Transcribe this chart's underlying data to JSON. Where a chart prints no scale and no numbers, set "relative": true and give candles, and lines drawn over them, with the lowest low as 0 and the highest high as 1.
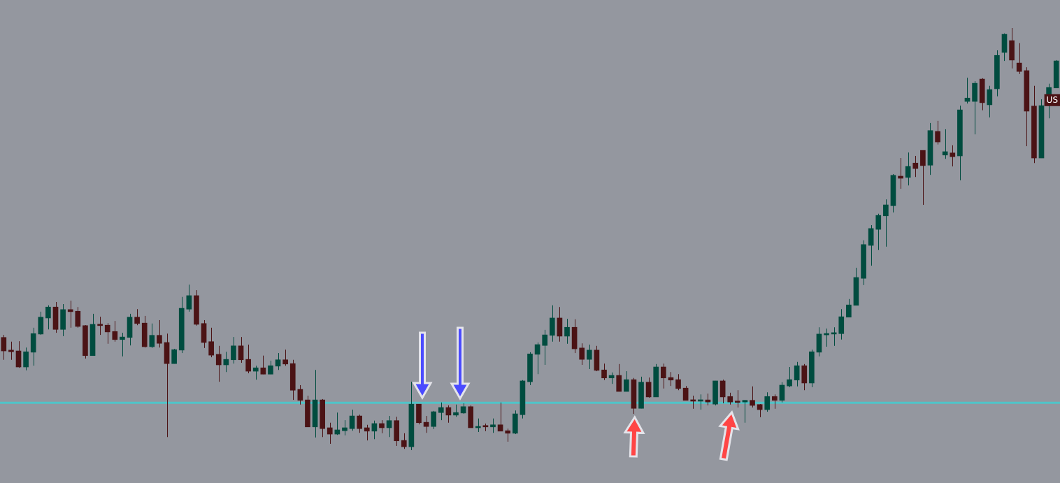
{
  "chart_data": {
    "type": "candlestick",
    "relative": true,
    "categories": [
      null,
      null,
      null,
      null,
      null,
      null,
      null,
      null,
      null,
      null,
      null,
      null,
      null,
      null,
      null,
      null,
      null,
      null,
      null,
      null,
      null,
      null,
      null,
      null,
      null,
      null,
      null,
      null,
      null,
      null,
      null,
      null,
      null,
      null,
      null,
      null,
      null,
      null,
      null,
      null,
      null,
      null,
      null,
      null,
      null,
      null,
      null,
      null,
      null,
      null,
      null,
      null,
      null,
      null,
      null,
      null,
      null,
      null,
      null,
      null,
      null,
      null,
      null,
      null,
      null,
      null,
      null,
      null,
      null,
      null,
      null,
      null,
      null,
      null,
      null,
      null,
      null,
      null,
      null,
      null,
      null,
      null,
      null,
      null,
      null,
      null,
      null,
      null,
      null,
      null,
      null,
      null,
      null,
      null,
      null,
      null,
      null,
      null,
      null,
      null,
      null,
      null,
      null,
      null,
      null,
      null,
      null,
      null,
      null,
      null,
      null,
      null,
      null,
      null,
      null,
      null,
      null,
      null,
      null,
      null,
      null,
      null,
      null,
      null,
      null,
      null,
      null,
      null,
      null,
      null,
      null,
      null,
      null,
      null,
      null,
      null,
      null,
      null,
      null,
      null,
      null,
      null,
      null
    ],
    "ohlc": [
      [
        0.267,
        0.273,
        0.214,
        0.235
      ],
      [
        0.237,
        0.257,
        0.214,
        0.233
      ],
      [
        0.235,
        0.258,
        0.195,
        0.197
      ],
      [
        0.197,
        0.243,
        0.189,
        0.233
      ],
      [
        0.232,
        0.29,
        0.2,
        0.276
      ],
      [
        0.275,
        0.328,
        0.273,
        0.315
      ],
      [
        0.313,
        0.343,
        0.286,
        0.339
      ],
      [
        0.339,
        0.351,
        0.278,
        0.286
      ],
      [
        0.286,
        0.346,
        0.27,
        0.333
      ],
      [
        0.333,
        0.354,
        0.29,
        0.328
      ],
      [
        0.329,
        0.339,
        0.29,
        0.293
      ],
      [
        0.295,
        0.296,
        0.217,
        0.224
      ],
      [
        0.224,
        0.323,
        0.224,
        0.298
      ],
      [
        0.298,
        0.316,
        0.273,
        0.295
      ],
      [
        0.296,
        0.301,
        0.252,
        0.28
      ],
      [
        0.281,
        0.306,
        0.257,
        0.262
      ],
      [
        0.262,
        0.278,
        0.222,
        0.268
      ],
      [
        0.267,
        0.323,
        0.248,
        0.315
      ],
      [
        0.315,
        0.334,
        0.296,
        0.3
      ],
      [
        0.301,
        0.318,
        0.243,
        0.245
      ],
      [
        0.245,
        0.3,
        0.242,
        0.272
      ],
      [
        0.272,
        0.308,
        0.243,
        0.253
      ],
      [
        0.255,
        0.276,
        0.031,
        0.205
      ],
      [
        0.205,
        0.24,
        0.205,
        0.238
      ],
      [
        0.237,
        0.363,
        0.23,
        0.336
      ],
      [
        0.334,
        0.392,
        0.328,
        0.366
      ],
      [
        0.366,
        0.379,
        0.295,
        0.298
      ],
      [
        0.3,
        0.308,
        0.242,
        0.255
      ],
      [
        0.257,
        0.29,
        0.22,
        0.225
      ],
      [
        0.227,
        0.247,
        0.162,
        0.202
      ],
      [
        0.202,
        0.233,
        0.185,
        0.215
      ],
      [
        0.214,
        0.268,
        0.205,
        0.247
      ],
      [
        0.247,
        0.268,
        0.207,
        0.214
      ],
      [
        0.215,
        0.25,
        0.182,
        0.187
      ],
      [
        0.187,
        0.2,
        0.167,
        0.195
      ],
      [
        0.195,
        0.224,
        0.18,
        0.18
      ],
      [
        0.18,
        0.212,
        0.18,
        0.2
      ],
      [
        0.199,
        0.23,
        0.19,
        0.214
      ],
      [
        0.214,
        0.238,
        0.2,
        0.204
      ],
      [
        0.205,
        0.214,
        0.119,
        0.142
      ],
      [
        0.144,
        0.154,
        0.108,
        0.118
      ],
      [
        0.119,
        0.129,
        0.055,
        0.055
      ],
      [
        0.055,
        0.19,
        0.03,
        0.119
      ],
      [
        0.119,
        0.121,
        0.031,
        0.051
      ],
      [
        0.053,
        0.065,
        0.015,
        0.038
      ],
      [
        0.038,
        0.089,
        0.036,
        0.048
      ],
      [
        0.046,
        0.071,
        0.035,
        0.053
      ],
      [
        0.051,
        0.096,
        0.046,
        0.081
      ],
      [
        0.081,
        0.084,
        0.041,
        0.051
      ],
      [
        0.053,
        0.06,
        0.023,
        0.045
      ],
      [
        0.045,
        0.07,
        0.026,
        0.063
      ],
      [
        0.063,
        0.071,
        0.04,
        0.053
      ],
      [
        0.053,
        0.081,
        0.031,
        0.07
      ],
      [
        0.07,
        0.079,
        0.01,
        0.022
      ],
      [
        0.023,
        0.04,
        0.003,
        0.008
      ],
      [
        0.008,
        0.162,
        0,
        0.109
      ],
      [
        0.109,
        0.109,
        0.061,
        0.065
      ],
      [
        0.066,
        0.081,
        0.041,
        0.056
      ],
      [
        0.056,
        0.093,
        0.05,
        0.091
      ],
      [
        0.089,
        0.113,
        0.071,
        0.101
      ],
      [
        0.101,
        0.106,
        0.065,
        0.083
      ],
      [
        0.083,
        0.108,
        0.079,
        0.089
      ],
      [
        0.088,
        0.111,
        0.086,
        0.103
      ],
      [
        0.103,
        0.106,
        0.053,
        0.053
      ],
      [
        0.053,
        0.075,
        0.043,
        0.056
      ],
      [
        0.056,
        0.063,
        0.045,
        0.055
      ],
      [
        0.055,
        0.075,
        0.041,
        0.06
      ],
      [
        0.06,
        0.113,
        0.045,
        0.045
      ],
      [
        0.046,
        0.051,
        0.02,
        0.04
      ],
      [
        0.04,
        0.094,
        0.038,
        0.086
      ],
      [
        0.084,
        0.166,
        0.075,
        0.164
      ],
      [
        0.162,
        0.232,
        0.154,
        0.228
      ],
      [
        0.227,
        0.255,
        0.18,
        0.25
      ],
      [
        0.248,
        0.285,
        0.202,
        0.273
      ],
      [
        0.272,
        0.343,
        0.257,
        0.313
      ],
      [
        0.313,
        0.339,
        0.257,
        0.27
      ],
      [
        0.27,
        0.311,
        0.252,
        0.291
      ],
      [
        0.291,
        0.31,
        0.23,
        0.24
      ],
      [
        0.242,
        0.253,
        0.202,
        0.215
      ],
      [
        0.215,
        0.25,
        0.192,
        0.237
      ],
      [
        0.237,
        0.247,
        0.187,
        0.189
      ],
      [
        0.19,
        0.205,
        0.166,
        0.171
      ],
      [
        0.171,
        0.184,
        0.157,
        0.177
      ],
      [
        0.177,
        0.204,
        0.139,
        0.139
      ],
      [
        0.139,
        0.187,
        0.139,
        0.167
      ],
      [
        0.167,
        0.171,
        0.086,
        0.099
      ],
      [
        0.099,
        0.174,
        0.099,
        0.161
      ],
      [
        0.161,
        0.172,
        0.124,
        0.126
      ],
      [
        0.126,
        0.204,
        0.126,
        0.197
      ],
      [
        0.197,
        0.205,
        0.146,
        0.171
      ],
      [
        0.172,
        0.185,
        0.152,
        0.166
      ],
      [
        0.167,
        0.18,
        0.142,
        0.146
      ],
      [
        0.147,
        0.152,
        0.118,
        0.118
      ],
      [
        0.119,
        0.129,
        0.098,
        0.116
      ],
      [
        0.116,
        0.132,
        0.096,
        0.119
      ],
      [
        0.119,
        0.134,
        0.106,
        0.114
      ],
      [
        0.109,
        0.164,
        0.106,
        0.164
      ],
      [
        0.164,
        0.167,
        0.111,
        0.126
      ],
      [
        0.127,
        0.136,
        0.108,
        0.114
      ],
      [
        0.116,
        0.142,
        0.101,
        0.113
      ],
      [
        0.114,
        0.118,
        0.065,
        0.118
      ],
      [
        0.118,
        0.151,
        0.101,
        0.106
      ],
      [
        0.108,
        0.109,
        0.078,
        0.096
      ],
      [
        0.096,
        0.137,
        0.091,
        0.127
      ],
      [
        0.127,
        0.132,
        0.098,
        0.118
      ],
      [
        0.118,
        0.161,
        0.113,
        0.154
      ],
      [
        0.152,
        0.197,
        0.149,
        0.167
      ],
      [
        0.166,
        0.209,
        0.151,
        0.2
      ],
      [
        0.2,
        0.204,
        0.142,
        0.159
      ],
      [
        0.159,
        0.238,
        0.149,
        0.233
      ],
      [
        0.232,
        0.291,
        0.222,
        0.275
      ],
      [
        0.273,
        0.288,
        0.245,
        0.276
      ],
      [
        0.275,
        0.291,
        0.247,
        0.278
      ],
      [
        0.276,
        0.334,
        0.262,
        0.316
      ],
      [
        0.315,
        0.358,
        0.315,
        0.344
      ],
      [
        0.343,
        0.432,
        0.343,
        0.409
      ],
      [
        0.407,
        0.497,
        0.391,
        0.487
      ],
      [
        0.485,
        0.533,
        0.437,
        0.525
      ],
      [
        0.523,
        0.56,
        0.474,
        0.556
      ],
      [
        0.555,
        0.594,
        0.482,
        0.581
      ],
      [
        0.579,
        0.654,
        0.563,
        0.651
      ],
      [
        0.649,
        0.692,
        0.619,
        0.644
      ],
      [
        0.646,
        0.705,
        0.627,
        0.672
      ],
      [
        0.68,
        0.697,
        0.647,
        0.667
      ],
      [
        0.71,
        0.71,
        0.581,
        0.674
      ],
      [
        0.675,
        0.775,
        0.652,
        0.757
      ],
      [
        0.755,
        0.78,
        0.724,
        0.73
      ],
      [
        0.699,
        0.76,
        0.69,
        0.707
      ],
      [
        0.704,
        0.722,
        0.672,
        0.695
      ],
      [
        0.697,
        0.816,
        0.639,
        0.806
      ],
      [
        0.826,
        0.882,
        0.821,
        0.834
      ],
      [
        0.826,
        0.874,
        0.748,
        0.869
      ],
      [
        0.879,
        0.881,
        0.805,
        0.823
      ],
      [
        0.818,
        0.863,
        0.788,
        0.854
      ],
      [
        0.856,
        0.947,
        0.838,
        0.935
      ],
      [
        0.942,
        0.987,
        0.922,
        0.985
      ],
      [
        0.97,
        1,
        0.904,
        0.924
      ],
      [
        0.917,
        0.964,
        0.891,
        0.897
      ],
      [
        0.899,
        0.907,
        0.72,
        0.803
      ],
      [
        0.815,
        0.863,
        0.68,
        0.692
      ],
      [
        0.692,
        0.831,
        0.692,
        0.816
      ],
      [
        0.818,
        0.868,
        0.786,
        0.859
      ],
      [
        0.858,
        0.924,
        0.858,
        0.922
      ]
    ],
    "colors": [
      "#4b1315",
      "#4b1315",
      "#4b1315",
      "#004c3f",
      "#004c3f",
      "#004c3f",
      "#004c3f",
      "#4b1315",
      "#004c3f",
      "#4b1315",
      "#4b1315",
      "#4b1315",
      "#004c3f",
      "#4b1315",
      "#4b1315",
      "#4b1315",
      "#004c3f",
      "#004c3f",
      "#4b1315",
      "#4b1315",
      "#004c3f",
      "#4b1315",
      "#4b1315",
      "#004c3f",
      "#004c3f",
      "#004c3f",
      "#4b1315",
      "#4b1315",
      "#4b1315",
      "#4b1315",
      "#004c3f",
      "#004c3f",
      "#4b1315",
      "#4b1315",
      "#004c3f",
      "#4b1315",
      "#004c3f",
      "#004c3f",
      "#4b1315",
      "#4b1315",
      "#4b1315",
      "#4b1315",
      "#004c3f",
      "#4b1315",
      "#4b1315",
      "#004c3f",
      "#004c3f",
      "#004c3f",
      "#4b1315",
      "#4b1315",
      "#004c3f",
      "#4b1315",
      "#004c3f",
      "#4b1315",
      "#4b1315",
      "#004c3f",
      "#4b1315",
      "#4b1315",
      "#004c3f",
      "#004c3f",
      "#4b1315",
      "#004c3f",
      "#004c3f",
      "#4b1315",
      "#004c3f",
      "#4b1315",
      "#004c3f",
      "#4b1315",
      "#4b1315",
      "#004c3f",
      "#004c3f",
      "#004c3f",
      "#004c3f",
      "#004c3f",
      "#004c3f",
      "#4b1315",
      "#004c3f",
      "#4b1315",
      "#4b1315",
      "#004c3f",
      "#4b1315",
      "#4b1315",
      "#004c3f",
      "#4b1315",
      "#004c3f",
      "#4b1315",
      "#004c3f",
      "#4b1315",
      "#004c3f",
      "#4b1315",
      "#4b1315",
      "#4b1315",
      "#4b1315",
      "#4b1315",
      "#004c3f",
      "#4b1315",
      "#004c3f",
      "#4b1315",
      "#4b1315",
      "#4b1315",
      "#004c3f",
      "#4b1315",
      "#4b1315",
      "#004c3f",
      "#4b1315",
      "#004c3f",
      "#004c3f",
      "#004c3f",
      "#4b1315",
      "#004c3f",
      "#004c3f",
      "#004c3f",
      "#004c3f",
      "#004c3f",
      "#004c3f",
      "#004c3f",
      "#004c3f",
      "#004c3f",
      "#004c3f",
      "#004c3f",
      "#004c3f",
      "#4b1315",
      "#004c3f",
      "#4b1315",
      "#4b1315",
      "#004c3f",
      "#4b1315",
      "#004c3f",
      "#4b1315",
      "#004c3f",
      "#004c3f",
      "#004c3f",
      "#4b1315",
      "#004c3f",
      "#004c3f",
      "#004c3f",
      "#4b1315",
      "#4b1315",
      "#4b1315",
      "#4b1315",
      "#004c3f",
      "#004c3f",
      "#004c3f"
    ],
    "ref_lines": [
      {
        "axis": "y",
        "value": 0.112,
        "color": "#50c4c8"
      }
    ],
    "annotations": [
      {
        "text": "US",
        "y": 0.829
      }
    ]
  }
}
